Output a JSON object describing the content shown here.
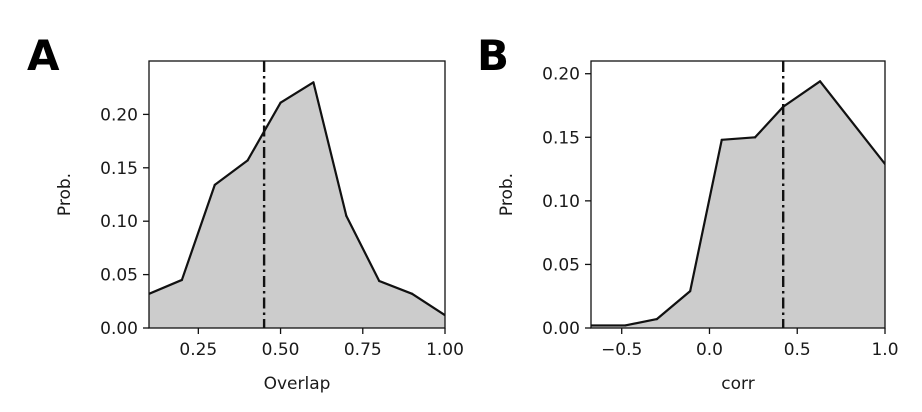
{
  "colors": {
    "fill": "#cccccc",
    "line": "#111111",
    "frame": "#111111"
  },
  "chart_data": [
    {
      "panel": "A",
      "type": "area",
      "xlabel": "Overlap",
      "ylabel": "Prob.",
      "xlim": [
        0.1,
        1.0
      ],
      "ylim": [
        0.0,
        0.25
      ],
      "xticks": [
        0.25,
        0.5,
        0.75,
        1.0
      ],
      "xtick_labels": [
        "0.25",
        "0.50",
        "0.75",
        "1.00"
      ],
      "yticks": [
        0.0,
        0.05,
        0.1,
        0.15,
        0.2
      ],
      "ytick_labels": [
        "0.00",
        "0.05",
        "0.10",
        "0.15",
        "0.20"
      ],
      "x": [
        0.1,
        0.2,
        0.3,
        0.4,
        0.5,
        0.6,
        0.7,
        0.8,
        0.9,
        1.0
      ],
      "y": [
        0.032,
        0.045,
        0.134,
        0.157,
        0.211,
        0.23,
        0.105,
        0.044,
        0.032,
        0.012
      ],
      "vline": 0.45
    },
    {
      "panel": "B",
      "type": "area",
      "xlabel": "corr",
      "ylabel": "Prob.",
      "xlim": [
        -0.675,
        1.0
      ],
      "ylim": [
        0.0,
        0.21
      ],
      "xticks": [
        -0.5,
        0.0,
        0.5,
        1.0
      ],
      "xtick_labels": [
        "−0.5",
        "0.0",
        "0.5",
        "1.0"
      ],
      "yticks": [
        0.0,
        0.05,
        0.1,
        0.15,
        0.2
      ],
      "ytick_labels": [
        "0.00",
        "0.05",
        "0.10",
        "0.15",
        "0.20"
      ],
      "x": [
        -0.675,
        -0.48,
        -0.3,
        -0.11,
        0.07,
        0.26,
        0.42,
        0.63,
        1.0
      ],
      "y": [
        0.002,
        0.002,
        0.007,
        0.029,
        0.148,
        0.15,
        0.174,
        0.194,
        0.129
      ],
      "vline": 0.42
    }
  ]
}
